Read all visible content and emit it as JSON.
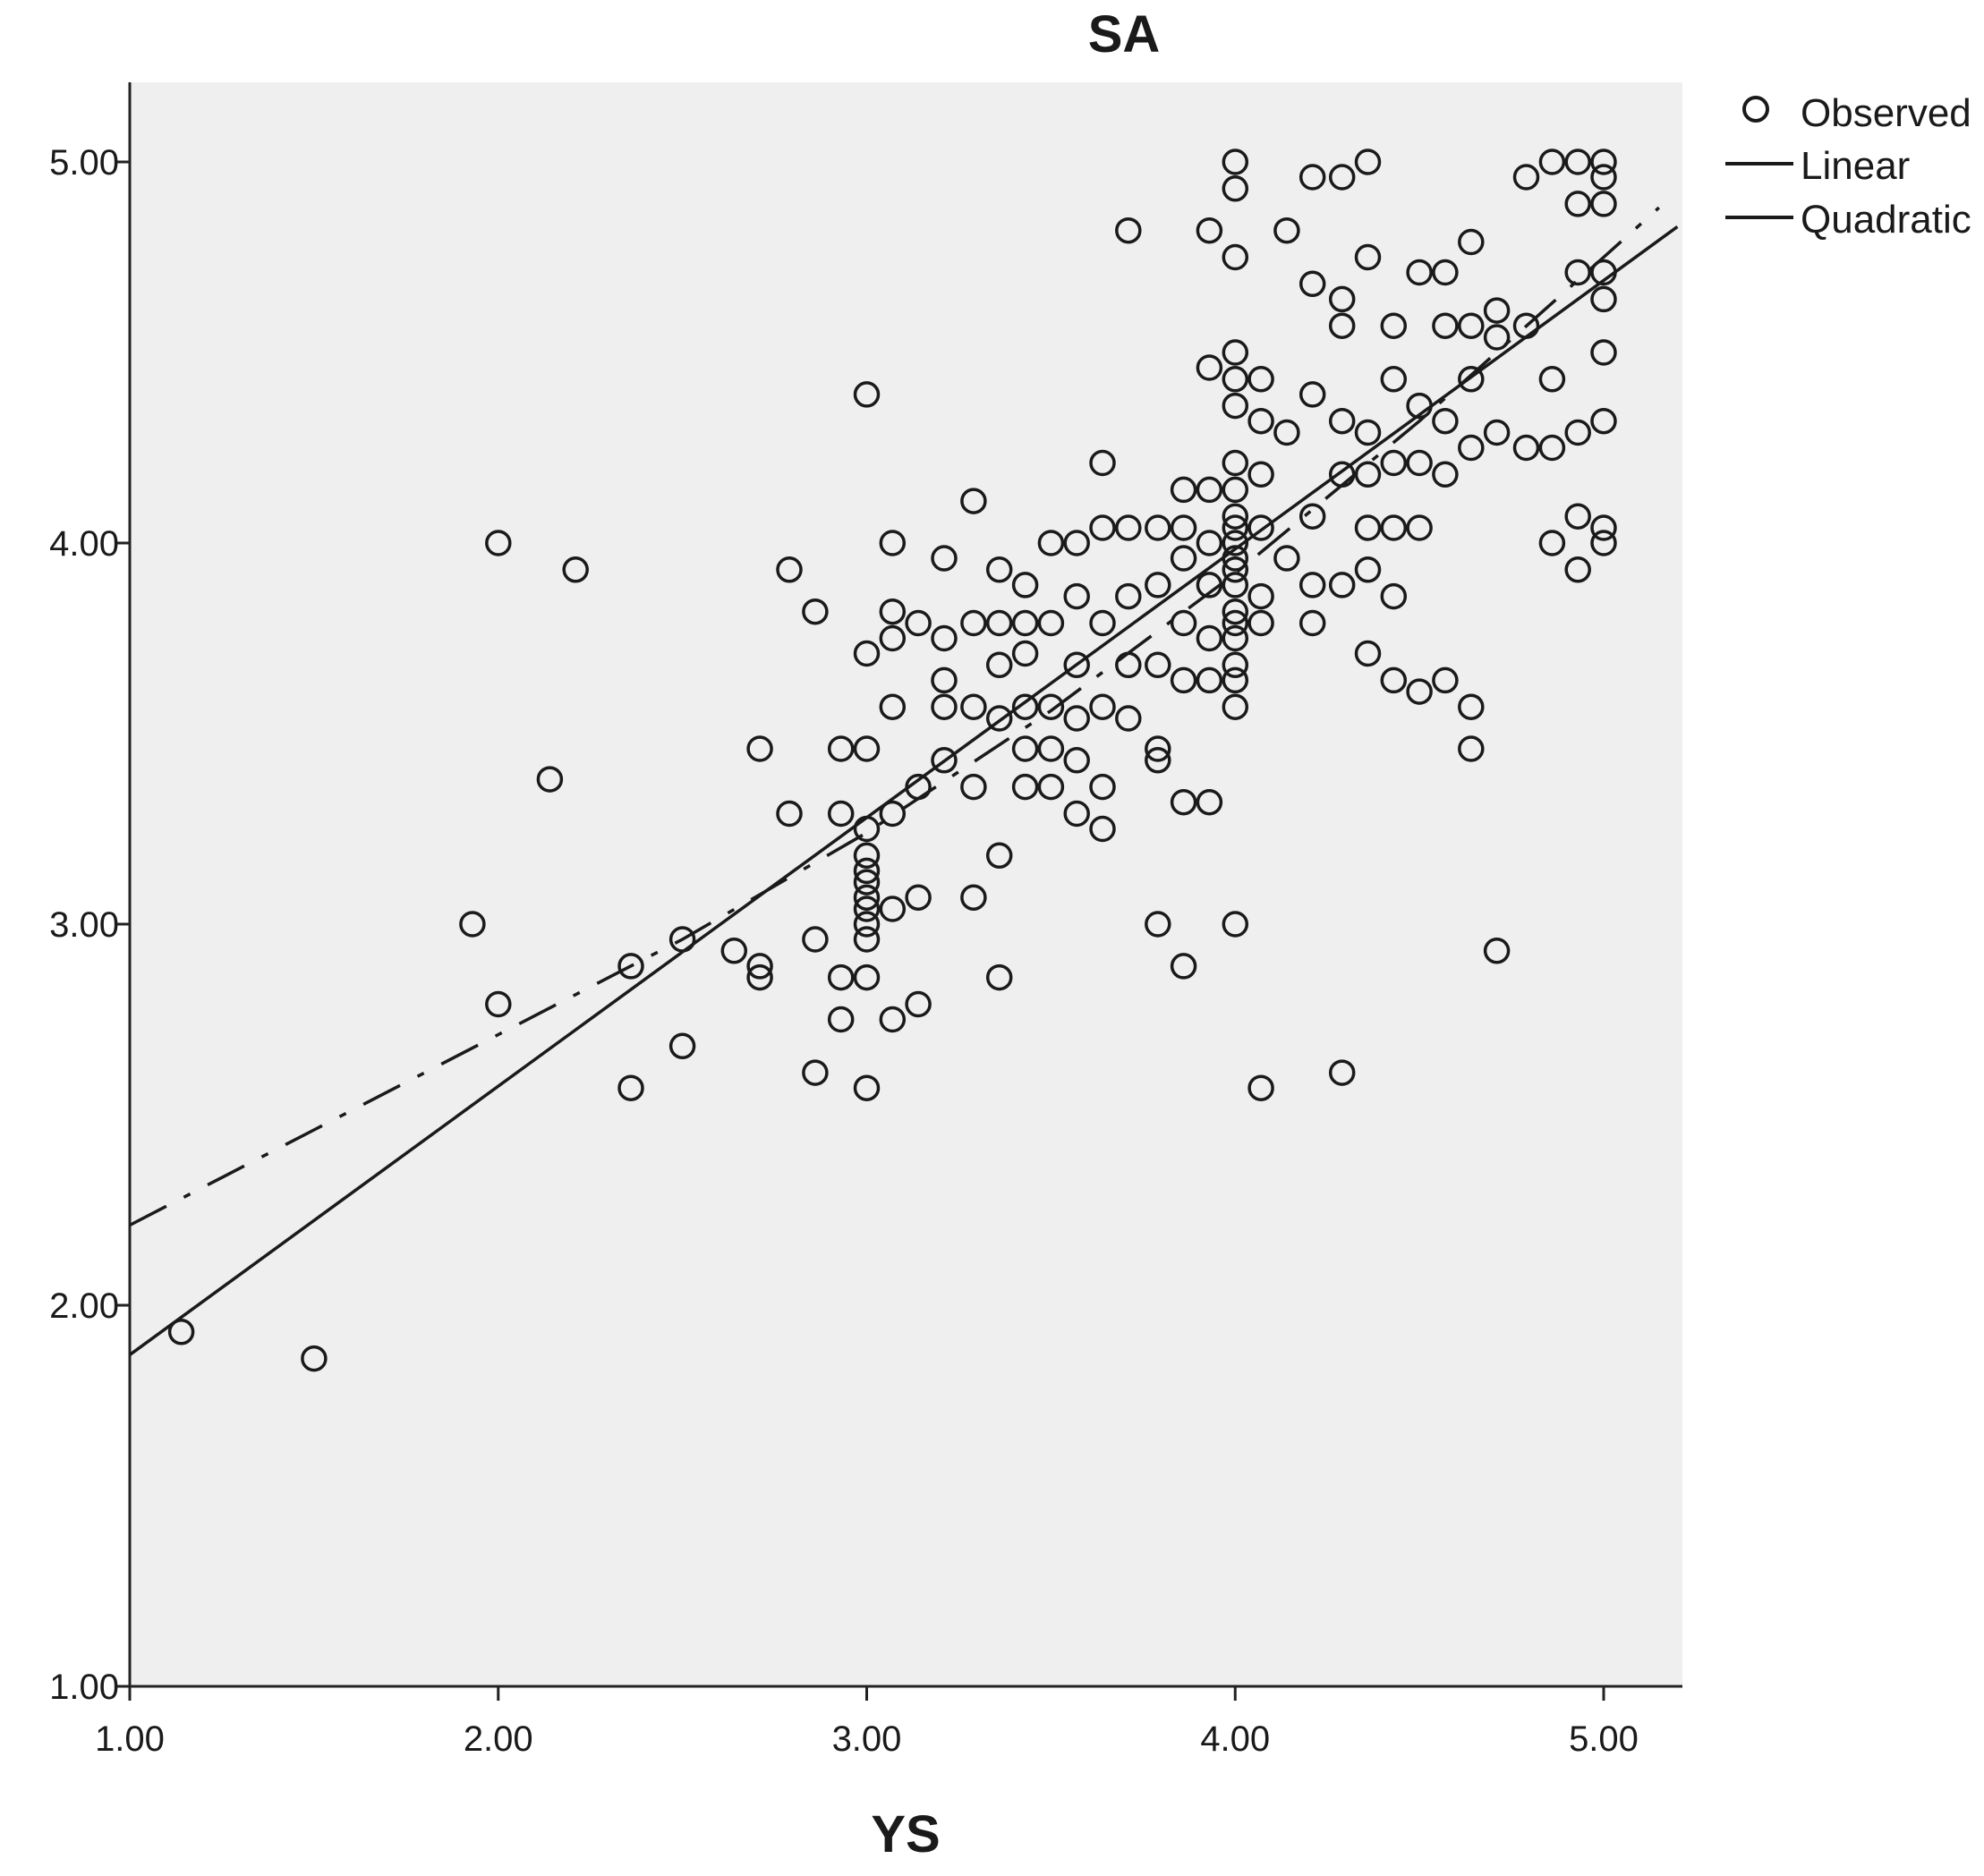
{
  "chart_data": {
    "type": "scatter",
    "title": "SA",
    "xlabel": "YS",
    "ylabel": "",
    "xlim": [
      1.0,
      5.2
    ],
    "ylim": [
      1.0,
      5.2
    ],
    "xticks": [
      "1.00",
      "2.00",
      "3.00",
      "4.00",
      "5.00"
    ],
    "yticks": [
      "1.00",
      "2.00",
      "3.00",
      "4.00",
      "5.00"
    ],
    "grid": false,
    "legend_position": "top-right",
    "legend": [
      "Observed",
      "Linear",
      "Quadratic"
    ],
    "colors": {
      "plot_background": "#efefef",
      "marks": "#1a1a1a",
      "axes": "#222222"
    },
    "series": [
      {
        "name": "Observed",
        "kind": "scatter",
        "x": [
          1.14,
          1.5,
          1.93,
          2.0,
          2.0,
          2.14,
          2.21,
          2.36,
          2.36,
          2.5,
          2.5,
          2.64,
          2.71,
          2.71,
          2.71,
          2.79,
          2.79,
          2.86,
          2.86,
          2.86,
          2.93,
          2.93,
          2.93,
          2.93,
          3.0,
          3.0,
          3.0,
          3.0,
          3.0,
          3.0,
          3.0,
          3.0,
          3.0,
          3.0,
          3.0,
          3.0,
          3.0,
          3.07,
          3.07,
          3.07,
          3.07,
          3.07,
          3.07,
          3.07,
          3.14,
          3.14,
          3.14,
          3.14,
          3.21,
          3.21,
          3.21,
          3.21,
          3.21,
          3.29,
          3.29,
          3.29,
          3.29,
          3.29,
          3.36,
          3.36,
          3.36,
          3.36,
          3.36,
          3.36,
          3.43,
          3.43,
          3.43,
          3.43,
          3.43,
          3.43,
          3.5,
          3.5,
          3.5,
          3.5,
          3.5,
          3.57,
          3.57,
          3.57,
          3.57,
          3.57,
          3.57,
          3.64,
          3.64,
          3.64,
          3.64,
          3.64,
          3.64,
          3.71,
          3.71,
          3.71,
          3.71,
          3.71,
          3.79,
          3.79,
          3.79,
          3.79,
          3.79,
          3.79,
          3.86,
          3.86,
          3.86,
          3.86,
          3.86,
          3.86,
          3.86,
          3.93,
          3.93,
          3.93,
          3.93,
          3.93,
          3.93,
          3.93,
          3.93,
          4.0,
          4.0,
          4.0,
          4.0,
          4.0,
          4.0,
          4.0,
          4.0,
          4.0,
          4.0,
          4.0,
          4.0,
          4.0,
          4.0,
          4.0,
          4.0,
          4.0,
          4.0,
          4.0,
          4.0,
          4.0,
          4.07,
          4.07,
          4.07,
          4.07,
          4.07,
          4.07,
          4.07,
          4.14,
          4.14,
          4.14,
          4.21,
          4.21,
          4.21,
          4.21,
          4.21,
          4.21,
          4.29,
          4.29,
          4.29,
          4.29,
          4.29,
          4.29,
          4.29,
          4.36,
          4.36,
          4.36,
          4.36,
          4.36,
          4.36,
          4.36,
          4.43,
          4.43,
          4.43,
          4.43,
          4.43,
          4.43,
          4.5,
          4.5,
          4.5,
          4.5,
          4.5,
          4.57,
          4.57,
          4.57,
          4.57,
          4.57,
          4.64,
          4.64,
          4.64,
          4.64,
          4.64,
          4.64,
          4.71,
          4.71,
          4.71,
          4.71,
          4.79,
          4.79,
          4.79,
          4.86,
          4.86,
          4.86,
          4.86,
          4.93,
          4.93,
          4.93,
          4.93,
          4.93,
          4.93,
          5.0,
          5.0,
          5.0,
          5.0,
          5.0,
          5.0,
          5.0,
          5.0,
          5.0
        ],
        "y": [
          1.93,
          1.86,
          3.0,
          4.0,
          2.79,
          3.38,
          3.93,
          2.57,
          2.89,
          2.68,
          2.96,
          2.93,
          2.86,
          3.46,
          2.89,
          3.93,
          3.29,
          2.61,
          2.96,
          3.82,
          2.86,
          2.75,
          3.29,
          3.46,
          4.39,
          2.57,
          2.86,
          3.04,
          3.14,
          3.25,
          3.71,
          3.46,
          2.96,
          3.0,
          3.07,
          3.11,
          3.18,
          4.0,
          3.82,
          3.75,
          3.57,
          3.29,
          3.04,
          2.75,
          3.79,
          3.36,
          3.07,
          2.79,
          3.96,
          3.75,
          3.64,
          3.57,
          3.43,
          4.11,
          3.79,
          3.57,
          3.36,
          3.07,
          3.93,
          3.79,
          3.68,
          3.54,
          3.18,
          2.86,
          3.71,
          3.57,
          3.46,
          3.36,
          3.89,
          3.79,
          4.0,
          3.79,
          3.57,
          3.46,
          3.36,
          4.0,
          3.86,
          3.68,
          3.54,
          3.43,
          3.29,
          4.21,
          4.04,
          3.79,
          3.57,
          3.36,
          3.25,
          4.82,
          4.04,
          3.86,
          3.68,
          3.54,
          4.04,
          3.89,
          3.68,
          3.46,
          3.43,
          3.0,
          4.14,
          4.04,
          3.96,
          3.79,
          3.64,
          3.32,
          2.89,
          4.82,
          4.46,
          4.14,
          4.0,
          3.89,
          3.75,
          3.64,
          3.32,
          5.0,
          4.93,
          4.75,
          4.5,
          4.43,
          4.36,
          4.21,
          4.14,
          4.07,
          4.04,
          4.0,
          3.96,
          3.93,
          3.89,
          3.82,
          3.79,
          3.75,
          3.68,
          3.64,
          3.57,
          3.0,
          4.43,
          4.32,
          4.18,
          4.04,
          3.86,
          3.79,
          2.57,
          4.82,
          4.29,
          3.96,
          4.96,
          4.68,
          4.39,
          4.07,
          3.89,
          3.79,
          4.96,
          4.64,
          4.57,
          4.32,
          4.18,
          3.89,
          2.61,
          5.0,
          4.75,
          4.29,
          4.18,
          4.04,
          3.71,
          3.93,
          4.57,
          4.43,
          4.21,
          4.04,
          3.86,
          3.64,
          4.71,
          4.36,
          4.21,
          4.04,
          3.61,
          4.71,
          4.57,
          4.32,
          4.18,
          3.64,
          4.79,
          4.57,
          4.43,
          4.25,
          3.57,
          3.46,
          4.61,
          4.54,
          4.29,
          2.93,
          4.96,
          4.57,
          4.25,
          5.0,
          4.43,
          4.25,
          4.0,
          5.0,
          4.89,
          4.71,
          4.29,
          4.07,
          3.93,
          5.0,
          4.96,
          4.89,
          4.71,
          4.64,
          4.5,
          4.32,
          4.04,
          4.0
        ]
      },
      {
        "name": "Linear",
        "kind": "line",
        "style": "solid",
        "x": [
          1.0,
          5.2
        ],
        "y": [
          1.87,
          4.83
        ]
      },
      {
        "name": "Quadratic",
        "kind": "line",
        "style": "dash-dot",
        "x": [
          1.0,
          1.5,
          2.0,
          2.5,
          3.0,
          3.5,
          4.0,
          4.5,
          5.0,
          5.15
        ],
        "y": [
          2.21,
          2.46,
          2.71,
          2.96,
          3.24,
          3.56,
          3.92,
          4.32,
          4.75,
          4.88
        ]
      }
    ]
  }
}
